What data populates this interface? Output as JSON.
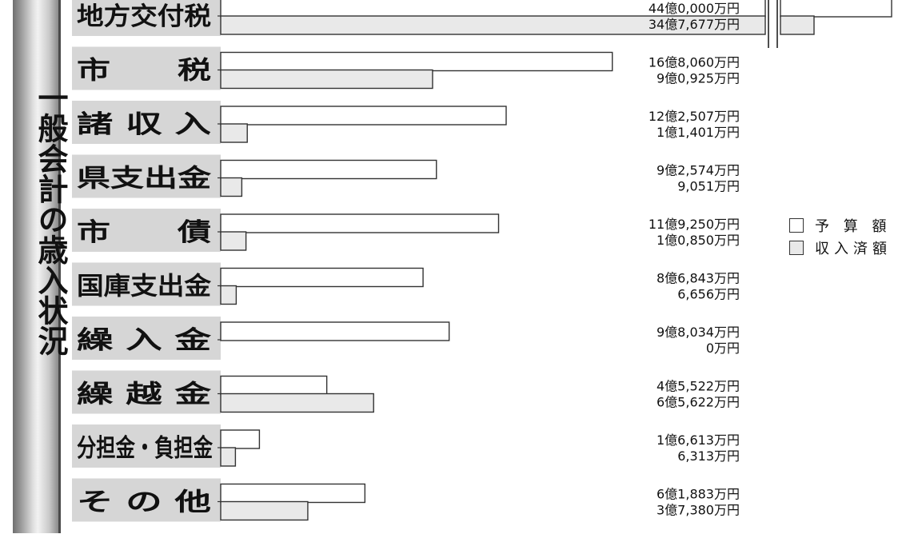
{
  "title": "一般会計の歳入状況",
  "colors": {
    "budget_fill": "#ffffff",
    "received_fill": "#e9e9e9",
    "label_bg": "#d6d6d6",
    "stroke": "#333333"
  },
  "legend": {
    "budget": "予 算 額",
    "received": "収入済額"
  },
  "chart_data": {
    "type": "bar",
    "orientation": "horizontal",
    "title": "一般会計の歳入状況",
    "unit": "万円",
    "categories": [
      "地方交付税",
      "市 税",
      "諸 収 入",
      "県支出金",
      "市 債",
      "国庫支出金",
      "繰 入 金",
      "繰 越 金",
      "分担金・負担金",
      "そ の 他"
    ],
    "category_labels": [
      "地方交付税",
      "市　　税",
      "諸 収 入",
      "県支出金",
      "市　　債",
      "国庫支出金",
      "繰 入 金",
      "繰 越 金",
      "分担金・負担金",
      "そ の 他"
    ],
    "series": [
      {
        "name": "予 算 額",
        "values": [
          440000,
          168060,
          122507,
          92574,
          119250,
          86843,
          98034,
          45522,
          16613,
          61883
        ],
        "labels": [
          "44億0,000万円",
          "16億8,060万円",
          "12億2,507万円",
          "9億2,574万円",
          "11億9,250万円",
          "8億6,843万円",
          "9億8,034万円",
          "4億5,522万円",
          "1億6,613万円",
          "6億1,883万円"
        ]
      },
      {
        "name": "収入済額",
        "values": [
          347677,
          90925,
          11401,
          9051,
          10850,
          6656,
          0,
          65622,
          6313,
          37380
        ],
        "labels": [
          "34億7,677万円",
          "9億0,925万円",
          "1億1,401万円",
          "9,051万円",
          "1億0,850万円",
          "6,656万円",
          "0万円",
          "6億5,622万円",
          "6,313万円",
          "3億7,380万円"
        ]
      }
    ],
    "axis_break": true,
    "legend_position": "right",
    "grid": false
  }
}
